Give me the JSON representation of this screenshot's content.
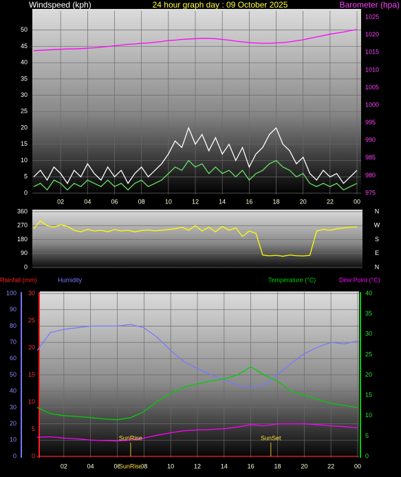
{
  "chart_data": [
    {
      "type": "line",
      "title": "24 hour graph day : 09 October 2025",
      "y_label": "Windspeed (kph)",
      "y2_label": "Barometer (hpa)",
      "x": [
        0,
        0.5,
        1,
        1.5,
        2,
        2.5,
        3,
        3.5,
        4,
        4.5,
        5,
        5.5,
        6,
        6.5,
        7,
        7.5,
        8,
        8.5,
        9,
        9.5,
        10,
        10.5,
        11,
        11.5,
        12,
        12.5,
        13,
        13.5,
        14,
        14.5,
        15,
        15.5,
        16,
        16.5,
        17,
        17.5,
        18,
        18.5,
        19,
        19.5,
        20,
        20.5,
        21,
        21.5,
        22,
        22.5,
        23,
        23.5,
        24
      ],
      "series": [
        {
          "color": "#ffffff",
          "axis": "y",
          "values": [
            5,
            7,
            4,
            8,
            6,
            3,
            7,
            5,
            9,
            6,
            4,
            8,
            5,
            7,
            3,
            6,
            8,
            5,
            7,
            9,
            12,
            16,
            14,
            20,
            15,
            18,
            13,
            17,
            12,
            15,
            10,
            14,
            8,
            12,
            14,
            18,
            20,
            15,
            13,
            9,
            11,
            6,
            4,
            7,
            5,
            6,
            3,
            5,
            7
          ]
        },
        {
          "color": "#66e066",
          "axis": "y",
          "values": [
            2,
            3,
            1,
            4,
            3,
            1,
            3,
            2,
            4,
            3,
            2,
            4,
            2,
            3,
            1,
            3,
            4,
            2,
            3,
            4,
            6,
            8,
            7,
            10,
            8,
            9,
            6,
            8,
            6,
            7,
            5,
            7,
            4,
            6,
            7,
            9,
            10,
            8,
            7,
            5,
            6,
            3,
            2,
            3,
            2,
            3,
            1,
            2,
            3
          ]
        },
        {
          "color": "#ff00ff",
          "axis": "y2",
          "values": [
            1015.5,
            1015.6,
            1015.7,
            1015.8,
            1015.9,
            1016,
            1016,
            1016.1,
            1016.2,
            1016.3,
            1016.5,
            1016.7,
            1016.9,
            1017.1,
            1017.3,
            1017.4,
            1017.6,
            1017.7,
            1017.9,
            1018.1,
            1018.4,
            1018.5,
            1018.7,
            1018.8,
            1018.9,
            1019,
            1019,
            1018.9,
            1018.7,
            1018.5,
            1018.2,
            1018,
            1017.8,
            1017.7,
            1017.6,
            1017.6,
            1017.7,
            1017.8,
            1018,
            1018.3,
            1018.6,
            1019,
            1019.4,
            1019.8,
            1020.2,
            1020.5,
            1020.8,
            1021.2,
            1021.5
          ]
        }
      ],
      "xlim": [
        0,
        24
      ],
      "xticks": [
        {
          "value": 2,
          "label": "02"
        },
        {
          "value": 4,
          "label": "04"
        },
        {
          "value": 6,
          "label": "06"
        },
        {
          "value": 8,
          "label": "08"
        },
        10,
        12,
        14,
        16,
        18,
        20,
        22,
        {
          "value": 24,
          "label": "00"
        }
      ],
      "ylim": [
        0,
        55
      ],
      "yticks": [
        0,
        5,
        10,
        15,
        20,
        25,
        30,
        35,
        40,
        45,
        50
      ],
      "y2lim": [
        975,
        1026
      ],
      "y2ticks": [
        975,
        980,
        985,
        990,
        995,
        1000,
        1005,
        1010,
        1015,
        1020,
        1025
      ],
      "grid": true
    },
    {
      "type": "line",
      "x": [
        0,
        0.5,
        1,
        1.5,
        2,
        2.5,
        3,
        3.5,
        4,
        4.5,
        5,
        5.5,
        6,
        6.5,
        7,
        7.5,
        8,
        8.5,
        9,
        9.5,
        10,
        10.5,
        11,
        11.5,
        12,
        12.5,
        13,
        13.5,
        14,
        14.5,
        15,
        15.5,
        16,
        16.5,
        17,
        17.5,
        18,
        18.5,
        19,
        19.5,
        20,
        20.5,
        21,
        21.5,
        22,
        22.5,
        23,
        23.5,
        24
      ],
      "series": [
        {
          "color": "#ffff00",
          "axis": "y",
          "values": [
            250,
            300,
            270,
            260,
            275,
            265,
            240,
            230,
            245,
            235,
            240,
            230,
            245,
            235,
            240,
            230,
            238,
            242,
            236,
            240,
            245,
            250,
            260,
            240,
            270,
            235,
            260,
            230,
            265,
            240,
            255,
            200,
            235,
            220,
            80,
            75,
            78,
            72,
            80,
            76,
            74,
            78,
            235,
            245,
            240,
            250,
            255,
            260,
            262
          ]
        }
      ],
      "xlim": [
        0,
        24
      ],
      "ylim": [
        0,
        360
      ],
      "yticks": [
        0,
        90,
        180,
        270,
        360
      ],
      "y2lim": [
        0,
        360
      ],
      "y2ticks": [
        {
          "value": 0,
          "label": "N"
        },
        {
          "value": 90,
          "label": "E"
        },
        {
          "value": 180,
          "label": "S"
        },
        {
          "value": 270,
          "label": "W"
        },
        {
          "value": 360,
          "label": "N"
        }
      ],
      "grid": true
    },
    {
      "type": "line",
      "x": [
        0,
        1,
        2,
        3,
        4,
        5,
        6,
        7,
        8,
        9,
        10,
        11,
        12,
        13,
        14,
        15,
        16,
        17,
        18,
        19,
        20,
        21,
        22,
        23,
        24
      ],
      "series": [
        {
          "name": "Rainfall (mm)",
          "color": "#ff2020",
          "axis": "y3",
          "values": [
            0,
            0,
            0,
            0,
            0,
            0,
            0,
            0,
            0,
            0,
            0,
            0,
            0,
            0,
            0,
            0,
            0,
            0,
            0,
            0,
            0,
            0,
            0,
            0,
            0
          ]
        },
        {
          "name": "Humidity",
          "color": "#7878ff",
          "axis": "y",
          "values": [
            65,
            76,
            78,
            79,
            80,
            80,
            80,
            81,
            79,
            73,
            65,
            58,
            54,
            50,
            47,
            44,
            42,
            44,
            50,
            57,
            63,
            67,
            70,
            69,
            71
          ]
        },
        {
          "name": "Temperature (°C)",
          "color": "#00d000",
          "axis": "y2",
          "values": [
            12,
            10.5,
            10,
            9.8,
            9.5,
            9.2,
            9,
            9.5,
            11,
            13.5,
            15.5,
            17,
            17.8,
            18.5,
            19,
            20,
            22,
            20,
            18.5,
            16,
            15,
            14,
            13,
            12.5,
            12
          ]
        },
        {
          "name": "Dew Point (°C)",
          "color": "#ff00ff",
          "axis": "y2",
          "values": [
            4.7,
            4.8,
            4.5,
            4.3,
            4,
            3.9,
            3.8,
            4,
            4.5,
            5.2,
            5.8,
            6.3,
            6.5,
            6.6,
            6.8,
            7.2,
            7.8,
            7.5,
            8,
            8,
            8,
            7.8,
            7.5,
            7.3,
            7
          ]
        }
      ],
      "xlim": [
        0,
        24
      ],
      "xticks": [
        {
          "value": 2,
          "label": "02"
        },
        {
          "value": 4,
          "label": "04"
        },
        {
          "value": 6,
          "label": "06"
        },
        {
          "value": 8,
          "label": "08"
        },
        10,
        12,
        14,
        16,
        18,
        20,
        22,
        {
          "value": 24,
          "label": "00"
        }
      ],
      "ylim": [
        0,
        100
      ],
      "yticks": [
        0,
        10,
        20,
        30,
        40,
        50,
        60,
        70,
        80,
        90,
        100
      ],
      "y2lim": [
        0,
        40
      ],
      "y2ticks": [
        0,
        5,
        10,
        15,
        20,
        25,
        30,
        35,
        40
      ],
      "y3lim": [
        0,
        30
      ],
      "y3ticks": [
        0,
        5,
        10,
        15,
        20,
        25,
        30
      ],
      "annotations": [
        {
          "label": "SunRise",
          "x": 7,
          "below": true
        },
        {
          "label": "SunSet",
          "x": 17.5,
          "below": false
        }
      ],
      "grid": true
    }
  ]
}
